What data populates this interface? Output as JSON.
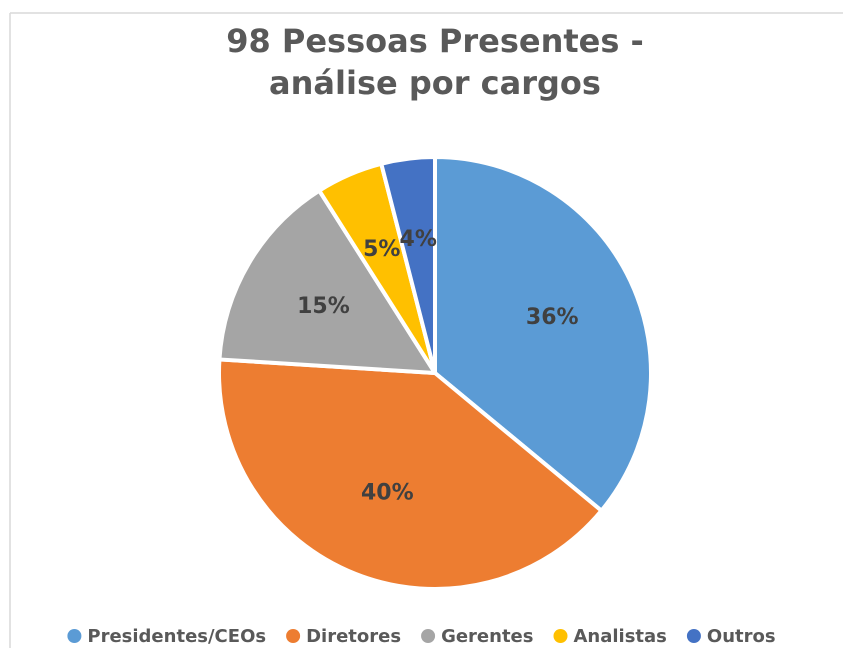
{
  "chart_data": {
    "type": "pie",
    "title": [
      "98 Pessoas Presentes -",
      "análise por cargos"
    ],
    "categories": [
      "Presidentes/CEOs",
      "Diretores",
      "Gerentes",
      "Analistas",
      "Outros"
    ],
    "values": [
      36,
      40,
      15,
      5,
      4
    ],
    "value_labels": [
      "36%",
      "40%",
      "15%",
      "5%",
      "4%"
    ],
    "colors": [
      "#5b9bd5",
      "#ed7d31",
      "#a5a5a5",
      "#ffc000",
      "#4472c4"
    ],
    "legend": "bottom"
  }
}
